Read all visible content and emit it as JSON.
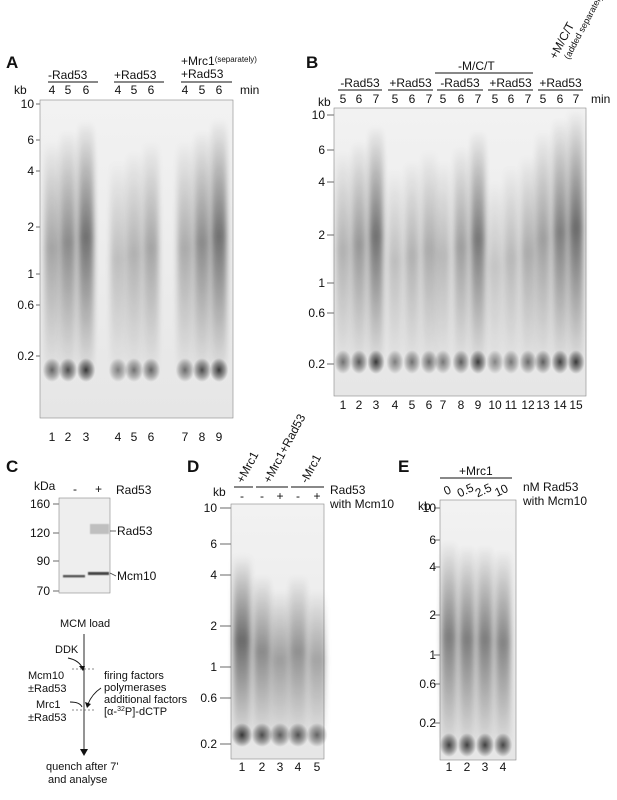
{
  "panels": {
    "A": {
      "letter": "A",
      "unit": "kb",
      "time_unit": "min",
      "groups": [
        {
          "label": "-Rad53",
          "label2": ""
        },
        {
          "label": "+Rad53",
          "label2": ""
        },
        {
          "label": "+Mrc1",
          "label_sup": "(separately)",
          "label2": "+Rad53"
        }
      ],
      "times": [
        "4",
        "5",
        "6",
        "4",
        "5",
        "6",
        "4",
        "5",
        "6"
      ],
      "lanes": [
        "1",
        "2",
        "3",
        "4",
        "5",
        "6",
        "7",
        "8",
        "9"
      ],
      "markers": [
        "10",
        "6",
        "4",
        "2",
        "1",
        "0.6",
        "0.2"
      ]
    },
    "B": {
      "letter": "B",
      "unit": "kb",
      "time_unit": "min",
      "groups": [
        {
          "label": "-Rad53"
        },
        {
          "label": "+Rad53"
        },
        {
          "label": "-Rad53"
        },
        {
          "label": "+Rad53"
        },
        {
          "label": "+Rad53"
        }
      ],
      "span_label": "-M/C/T",
      "rot_label": "+M/C/T",
      "rot_label2": "(added separately)",
      "times": [
        "5",
        "6",
        "7",
        "5",
        "6",
        "7",
        "5",
        "6",
        "7",
        "5",
        "6",
        "7",
        "5",
        "6",
        "7"
      ],
      "lanes": [
        "1",
        "2",
        "3",
        "4",
        "5",
        "6",
        "7",
        "8",
        "9",
        "10",
        "11",
        "12",
        "13",
        "14",
        "15"
      ],
      "markers": [
        "10",
        "6",
        "4",
        "2",
        "1",
        "0.6",
        "0.2"
      ]
    },
    "C": {
      "letter": "C",
      "unit": "kDa",
      "lane_minus": "-",
      "lane_plus": "+",
      "lane_factor": "Rad53",
      "markers": [
        "160",
        "120",
        "90",
        "70"
      ],
      "bands": [
        "Rad53",
        "Mcm10"
      ],
      "scheme": {
        "start": "MCM load",
        "ddk": "DDK",
        "mcm10": "Mcm10",
        "mcm10_rad": "±Rad53",
        "mrc1": "Mrc1",
        "mrc1_rad": "±Rad53",
        "firing": "firing factors",
        "polymerases": "polymerases",
        "additional": "additional factors",
        "nucleotide_pre": "[α-",
        "nucleotide_sup": "32",
        "nucleotide_post": "P]-dCTP",
        "end1": "quench after 7'",
        "end2": "and analyse"
      }
    },
    "D": {
      "letter": "D",
      "unit": "kb",
      "groups": [
        "+Mrc1",
        "+Mrc1+Rad53",
        "-Mrc1"
      ],
      "signs": [
        "-",
        "-",
        "+",
        "-",
        "+"
      ],
      "factor_label": "Rad53",
      "factor_label2": "with Mcm10",
      "lanes": [
        "1",
        "2",
        "3",
        "4",
        "5"
      ],
      "markers": [
        "10",
        "6",
        "4",
        "2",
        "1",
        "0.6",
        "0.2"
      ]
    },
    "E": {
      "letter": "E",
      "unit": "kb",
      "group": "+Mrc1",
      "concs": [
        "0",
        "0.5",
        "2.5",
        "10"
      ],
      "factor_label": "nM Rad53",
      "factor_label2": "with Mcm10",
      "lanes": [
        "1",
        "2",
        "3",
        "4"
      ],
      "markers": [
        "10",
        "6",
        "4",
        "2",
        "1",
        "0.6",
        "0.2"
      ]
    }
  }
}
